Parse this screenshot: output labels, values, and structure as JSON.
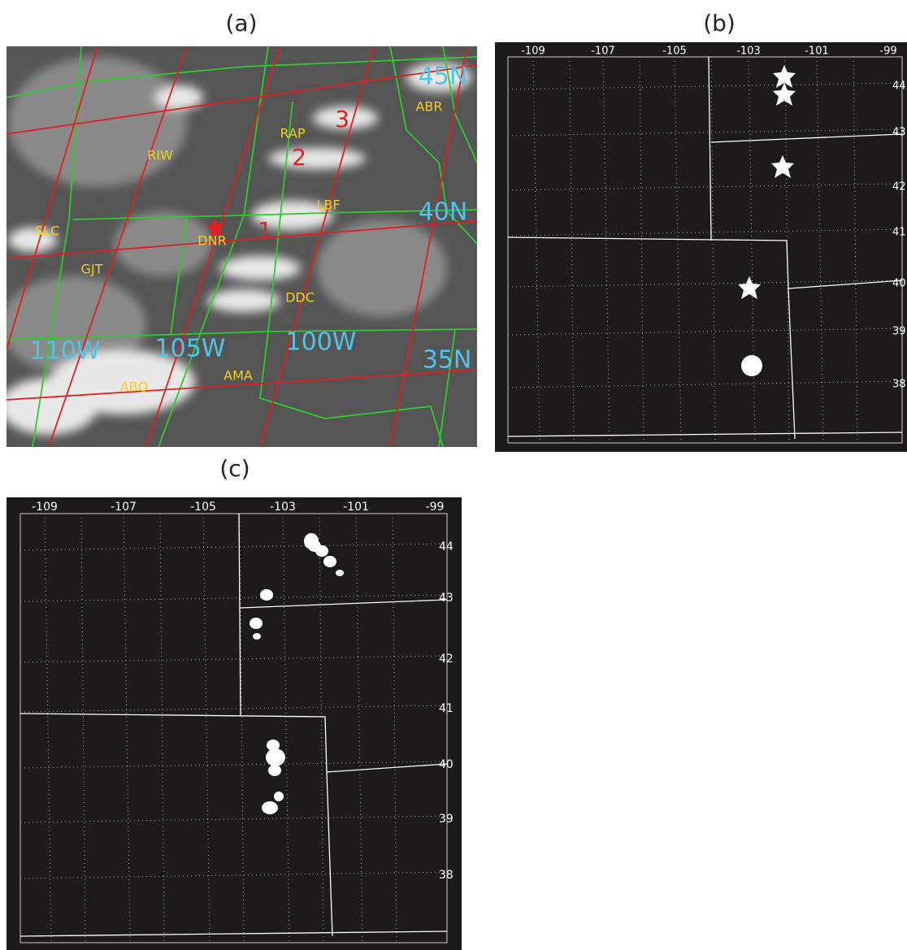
{
  "panels": [
    {
      "label": "(a)",
      "stations": [
        "SLC",
        "GJT",
        "RIW",
        "DNR",
        "RAP",
        "LBF",
        "DDC",
        "ABQ",
        "AMA",
        "ABR"
      ],
      "grid_labels": [
        "45N",
        "40N",
        "35N",
        "110W",
        "105W",
        "100W"
      ],
      "numbers": [
        "1",
        "2",
        "3"
      ]
    },
    {
      "label": "(b)",
      "lon_labels": [
        "-109",
        "-107",
        "-105",
        "-103",
        "-101",
        "-99"
      ],
      "lat_labels": [
        "44",
        "43",
        "42",
        "41",
        "40",
        "39",
        "38"
      ]
    },
    {
      "label": "(c)",
      "lon_labels": [
        "-109",
        "-107",
        "-105",
        "-103",
        "-101",
        "-99"
      ],
      "lat_labels": [
        "44",
        "43",
        "42",
        "41",
        "40",
        "39",
        "38"
      ]
    }
  ]
}
